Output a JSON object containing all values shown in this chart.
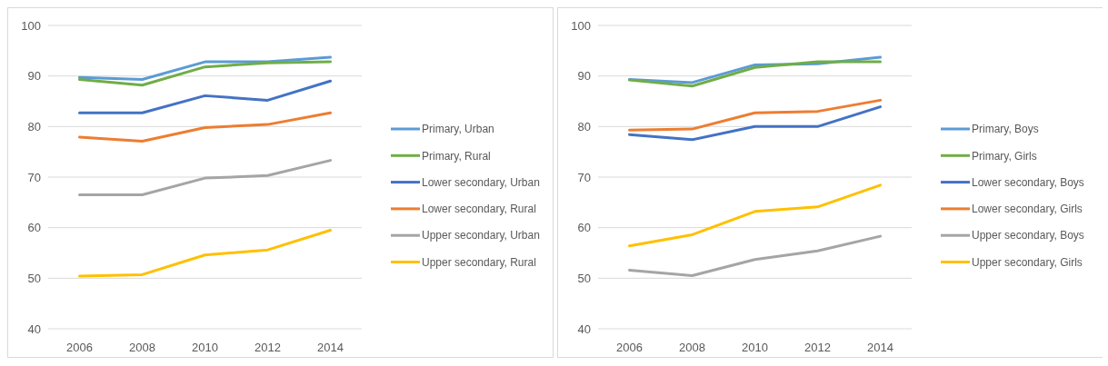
{
  "chart_data": [
    {
      "type": "line",
      "categories": [
        "2006",
        "2008",
        "2010",
        "2012",
        "2014"
      ],
      "ylim": [
        40,
        100
      ],
      "yticks": [
        40,
        50,
        60,
        70,
        80,
        90,
        100
      ],
      "grid": "y",
      "legend": "right",
      "series": [
        {
          "name": "Primary, Urban",
          "color": "#5b9bd5",
          "values": [
            89.7,
            89.3,
            92.8,
            92.8,
            93.7
          ]
        },
        {
          "name": "Primary, Rural",
          "color": "#70ad47",
          "values": [
            89.3,
            88.2,
            91.8,
            92.6,
            92.8
          ]
        },
        {
          "name": "Lower secondary, Urban",
          "color": "#4472c4",
          "values": [
            82.7,
            82.7,
            86.1,
            85.2,
            89.0
          ]
        },
        {
          "name": "Lower secondary, Rural",
          "color": "#ed7d31",
          "values": [
            77.9,
            77.1,
            79.8,
            80.4,
            82.7
          ]
        },
        {
          "name": "Upper secondary, Urban",
          "color": "#a5a5a5",
          "values": [
            66.5,
            66.5,
            69.8,
            70.3,
            73.3
          ]
        },
        {
          "name": "Upper secondary, Rural",
          "color": "#ffc000",
          "values": [
            50.4,
            50.7,
            54.6,
            55.6,
            59.5
          ]
        }
      ]
    },
    {
      "type": "line",
      "categories": [
        "2006",
        "2008",
        "2010",
        "2012",
        "2014"
      ],
      "ylim": [
        40,
        100
      ],
      "yticks": [
        40,
        50,
        60,
        70,
        80,
        90,
        100
      ],
      "grid": "y",
      "legend": "right",
      "series": [
        {
          "name": "Primary, Boys",
          "color": "#5b9bd5",
          "values": [
            89.3,
            88.7,
            92.2,
            92.4,
            93.7
          ]
        },
        {
          "name": "Primary, Girls",
          "color": "#70ad47",
          "values": [
            89.2,
            88.0,
            91.7,
            92.8,
            92.8
          ]
        },
        {
          "name": "Lower secondary, Boys",
          "color": "#4472c4",
          "values": [
            78.4,
            77.4,
            80.0,
            80.0,
            83.9
          ]
        },
        {
          "name": "Lower secondary, Girls",
          "color": "#ed7d31",
          "values": [
            79.3,
            79.5,
            82.7,
            83.0,
            85.2
          ]
        },
        {
          "name": "Upper secondary, Boys",
          "color": "#a5a5a5",
          "values": [
            51.6,
            50.5,
            53.7,
            55.4,
            58.3
          ]
        },
        {
          "name": "Upper secondary, Girls",
          "color": "#ffc000",
          "values": [
            56.4,
            58.6,
            63.2,
            64.1,
            68.4
          ]
        }
      ]
    }
  ]
}
